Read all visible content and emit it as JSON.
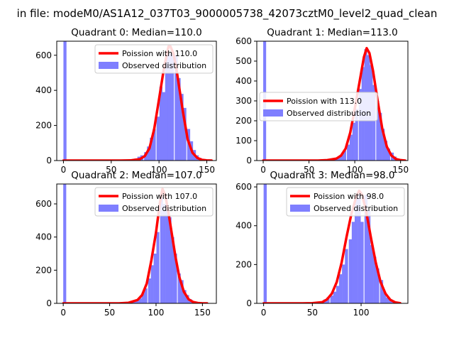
{
  "figure": {
    "title": "in file: modeM0/AS1A12_037T03_9000005738_42073cztM0_level2_quad_clean"
  },
  "colors": {
    "model": "#ff0000",
    "observed": "#7f7fff",
    "axis": "#000000",
    "legend_border": "#cccccc"
  },
  "chart_data": [
    {
      "type": "histogram",
      "title": "Quadrant 0: Median=110.0",
      "median": 110.0,
      "xlim": [
        -7,
        160
      ],
      "ylim": [
        0,
        680
      ],
      "xticks": [
        0,
        50,
        100,
        150
      ],
      "yticks": [
        0,
        200,
        400,
        600
      ],
      "legend": [
        "Poission with 110.0",
        "Observed distribution"
      ],
      "legend_position": "upper right",
      "bin_width": 3.2,
      "zero_bin_count": 680,
      "observed": [
        [
          48,
          1
        ],
        [
          53,
          1
        ],
        [
          57,
          2
        ],
        [
          60,
          2
        ],
        [
          64,
          3
        ],
        [
          67,
          4
        ],
        [
          70,
          5
        ],
        [
          73,
          8
        ],
        [
          76,
          12
        ],
        [
          79,
          22
        ],
        [
          82,
          30
        ],
        [
          86,
          48
        ],
        [
          89,
          80
        ],
        [
          92,
          130
        ],
        [
          95,
          180
        ],
        [
          99,
          250
        ],
        [
          102,
          420
        ],
        [
          105,
          390
        ],
        [
          108,
          600
        ],
        [
          111,
          610
        ],
        [
          114,
          620
        ],
        [
          118,
          600
        ],
        [
          121,
          470
        ],
        [
          124,
          380
        ],
        [
          127,
          300
        ],
        [
          131,
          180
        ],
        [
          134,
          110
        ],
        [
          137,
          60
        ],
        [
          140,
          30
        ],
        [
          143,
          15
        ],
        [
          147,
          6
        ],
        [
          150,
          3
        ],
        [
          153,
          1
        ]
      ],
      "model_line": [
        [
          0,
          0
        ],
        [
          40,
          0
        ],
        [
          60,
          0
        ],
        [
          70,
          1
        ],
        [
          80,
          8
        ],
        [
          85,
          25
        ],
        [
          90,
          70
        ],
        [
          95,
          180
        ],
        [
          100,
          350
        ],
        [
          105,
          520
        ],
        [
          108,
          600
        ],
        [
          110,
          650
        ],
        [
          112,
          650
        ],
        [
          115,
          610
        ],
        [
          118,
          530
        ],
        [
          121,
          420
        ],
        [
          125,
          280
        ],
        [
          130,
          120
        ],
        [
          135,
          45
        ],
        [
          140,
          15
        ],
        [
          145,
          4
        ],
        [
          150,
          1
        ],
        [
          155,
          0
        ]
      ]
    },
    {
      "type": "histogram",
      "title": "Quadrant 1: Median=113.0",
      "median": 113.0,
      "xlim": [
        -7,
        158
      ],
      "ylim": [
        0,
        600
      ],
      "xticks": [
        0,
        50,
        100,
        150
      ],
      "yticks": [
        0,
        100,
        200,
        300,
        400,
        500,
        600
      ],
      "legend": [
        "Poission with 113.0",
        "Observed distribution"
      ],
      "legend_position": "center left",
      "bin_width": 3.2,
      "zero_bin_count": 600,
      "observed": [
        [
          60,
          1
        ],
        [
          65,
          2
        ],
        [
          70,
          3
        ],
        [
          74,
          8
        ],
        [
          77,
          12
        ],
        [
          80,
          14
        ],
        [
          83,
          18
        ],
        [
          86,
          28
        ],
        [
          89,
          50
        ],
        [
          93,
          80
        ],
        [
          96,
          130
        ],
        [
          99,
          190
        ],
        [
          102,
          260
        ],
        [
          106,
          360
        ],
        [
          109,
          470
        ],
        [
          112,
          560
        ],
        [
          115,
          530
        ],
        [
          118,
          480
        ],
        [
          121,
          380
        ],
        [
          125,
          300
        ],
        [
          128,
          240
        ],
        [
          131,
          160
        ],
        [
          134,
          100
        ],
        [
          137,
          60
        ],
        [
          141,
          40
        ],
        [
          144,
          20
        ],
        [
          147,
          10
        ],
        [
          150,
          4
        ],
        [
          153,
          2
        ]
      ],
      "model_line": [
        [
          0,
          0
        ],
        [
          60,
          0
        ],
        [
          70,
          2
        ],
        [
          80,
          10
        ],
        [
          85,
          25
        ],
        [
          90,
          60
        ],
        [
          95,
          140
        ],
        [
          100,
          260
        ],
        [
          105,
          390
        ],
        [
          110,
          520
        ],
        [
          113,
          565
        ],
        [
          116,
          540
        ],
        [
          120,
          450
        ],
        [
          125,
          300
        ],
        [
          130,
          160
        ],
        [
          135,
          70
        ],
        [
          140,
          25
        ],
        [
          145,
          8
        ],
        [
          150,
          2
        ],
        [
          155,
          0
        ]
      ]
    },
    {
      "type": "histogram",
      "title": "Quadrant 2: Median=107.0",
      "median": 107.0,
      "xlim": [
        -7,
        165
      ],
      "ylim": [
        0,
        720
      ],
      "xticks": [
        0,
        50,
        100,
        150
      ],
      "yticks": [
        0,
        200,
        400,
        600
      ],
      "legend": [
        "Poission with 107.0",
        "Observed distribution"
      ],
      "legend_position": "upper right",
      "bin_width": 3.2,
      "zero_bin_count": 720,
      "observed": [
        [
          65,
          2
        ],
        [
          70,
          3
        ],
        [
          74,
          5
        ],
        [
          77,
          10
        ],
        [
          80,
          18
        ],
        [
          83,
          30
        ],
        [
          86,
          60
        ],
        [
          89,
          90
        ],
        [
          93,
          150
        ],
        [
          96,
          230
        ],
        [
          99,
          300
        ],
        [
          102,
          430
        ],
        [
          106,
          640
        ],
        [
          109,
          600
        ],
        [
          112,
          560
        ],
        [
          115,
          520
        ],
        [
          118,
          400
        ],
        [
          121,
          300
        ],
        [
          125,
          180
        ],
        [
          128,
          140
        ],
        [
          131,
          80
        ],
        [
          134,
          50
        ],
        [
          137,
          25
        ],
        [
          141,
          12
        ],
        [
          144,
          5
        ],
        [
          147,
          2
        ]
      ],
      "model_line": [
        [
          0,
          0
        ],
        [
          60,
          0
        ],
        [
          70,
          3
        ],
        [
          80,
          20
        ],
        [
          85,
          50
        ],
        [
          90,
          120
        ],
        [
          95,
          260
        ],
        [
          100,
          430
        ],
        [
          104,
          600
        ],
        [
          107,
          690
        ],
        [
          110,
          650
        ],
        [
          113,
          560
        ],
        [
          117,
          420
        ],
        [
          121,
          280
        ],
        [
          125,
          160
        ],
        [
          130,
          70
        ],
        [
          135,
          25
        ],
        [
          140,
          8
        ],
        [
          145,
          2
        ],
        [
          150,
          0
        ],
        [
          155,
          0
        ]
      ]
    },
    {
      "type": "histogram",
      "title": "Quadrant 3: Median=98.0",
      "median": 98.0,
      "xlim": [
        -7,
        148
      ],
      "ylim": [
        0,
        615
      ],
      "xticks": [
        0,
        50,
        100
      ],
      "yticks": [
        0,
        200,
        400,
        600
      ],
      "legend": [
        "Poission with 98.0",
        "Observed distribution"
      ],
      "legend_position": "upper right",
      "bin_width": 3.2,
      "zero_bin_count": 615,
      "observed": [
        [
          30,
          1
        ],
        [
          35,
          2
        ],
        [
          40,
          3
        ],
        [
          45,
          4
        ],
        [
          50,
          5
        ],
        [
          53,
          6
        ],
        [
          57,
          8
        ],
        [
          60,
          10
        ],
        [
          63,
          20
        ],
        [
          66,
          30
        ],
        [
          70,
          40
        ],
        [
          73,
          60
        ],
        [
          76,
          90
        ],
        [
          79,
          150
        ],
        [
          82,
          200
        ],
        [
          85,
          280
        ],
        [
          89,
          330
        ],
        [
          92,
          420
        ],
        [
          95,
          540
        ],
        [
          98,
          560
        ],
        [
          101,
          420
        ],
        [
          105,
          560
        ],
        [
          108,
          480
        ],
        [
          111,
          300
        ],
        [
          114,
          240
        ],
        [
          117,
          180
        ],
        [
          121,
          120
        ],
        [
          124,
          60
        ],
        [
          127,
          30
        ],
        [
          130,
          15
        ],
        [
          133,
          6
        ],
        [
          137,
          2
        ]
      ],
      "model_line": [
        [
          0,
          0
        ],
        [
          40,
          0
        ],
        [
          50,
          1
        ],
        [
          60,
          6
        ],
        [
          65,
          20
        ],
        [
          70,
          50
        ],
        [
          75,
          110
        ],
        [
          80,
          210
        ],
        [
          85,
          340
        ],
        [
          90,
          460
        ],
        [
          95,
          550
        ],
        [
          98,
          580
        ],
        [
          101,
          560
        ],
        [
          105,
          480
        ],
        [
          110,
          340
        ],
        [
          115,
          210
        ],
        [
          120,
          110
        ],
        [
          125,
          50
        ],
        [
          130,
          18
        ],
        [
          135,
          5
        ],
        [
          140,
          1
        ]
      ]
    }
  ]
}
